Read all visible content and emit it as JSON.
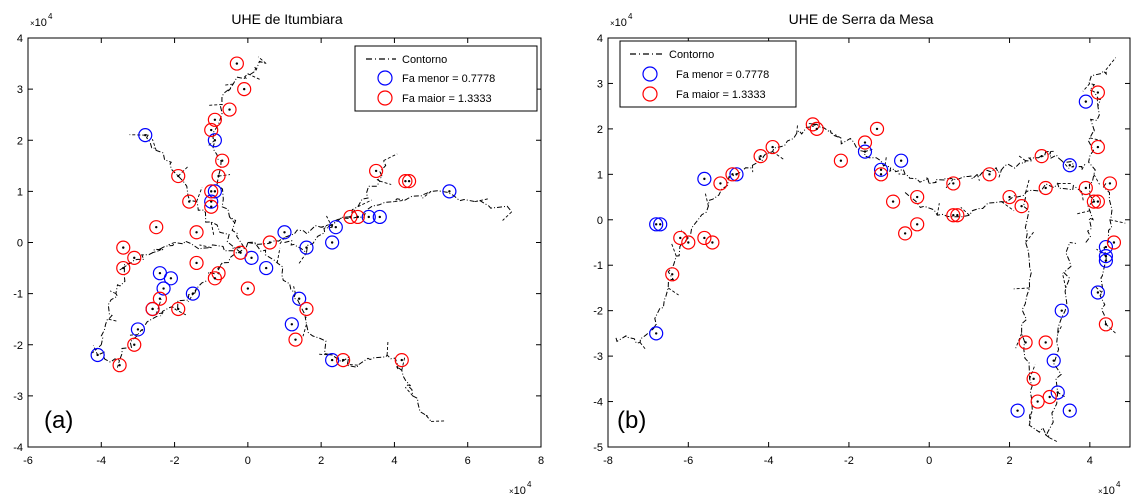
{
  "colors": {
    "blue": "#0000ff",
    "red": "#ff0000",
    "contour": "#000000"
  },
  "chart_data": [
    {
      "type": "scatter",
      "title": "UHE de Itumbiara",
      "panel_label": "(a)",
      "axis_multiplier": "10",
      "axis_exponent": "4",
      "xlim": [
        -6,
        8
      ],
      "ylim": [
        -4,
        4
      ],
      "xticks": [
        -6,
        -4,
        -2,
        0,
        2,
        4,
        6,
        8
      ],
      "yticks": [
        -4,
        -3,
        -2,
        -1,
        0,
        1,
        2,
        3,
        4
      ],
      "legend": {
        "position": "top-right",
        "entries": [
          {
            "label": "Contorno",
            "style": "dash-dot"
          },
          {
            "label": "Fa menor = 0.7778",
            "color": "blue"
          },
          {
            "label": "Fa maior = 1.3333",
            "color": "red"
          }
        ]
      },
      "contour_arms": [
        [
          [
            -0.2,
            -0.2
          ],
          [
            -1.0,
            0.4
          ],
          [
            -1.4,
            0.8
          ],
          [
            -1.9,
            1.3
          ],
          [
            -2.5,
            1.8
          ],
          [
            -2.8,
            2.1
          ]
        ],
        [
          [
            -0.1,
            -0.1
          ],
          [
            -0.5,
            0.5
          ],
          [
            -0.8,
            1.3
          ],
          [
            -0.9,
            2.0
          ],
          [
            -0.7,
            2.7
          ],
          [
            -0.4,
            3.1
          ],
          [
            0.0,
            3.3
          ],
          [
            0.5,
            3.5
          ]
        ],
        [
          [
            0.0,
            0.0
          ],
          [
            -0.7,
            -0.4
          ],
          [
            -1.4,
            -0.9
          ],
          [
            -2.0,
            -1.3
          ],
          [
            -2.5,
            -1.4
          ],
          [
            -3.0,
            -1.8
          ],
          [
            -3.5,
            -2.3
          ],
          [
            -4.1,
            -2.2
          ]
        ],
        [
          [
            -0.2,
            -0.1
          ],
          [
            -1.0,
            -0.1
          ],
          [
            -2.0,
            0.0
          ],
          [
            -2.6,
            -0.2
          ],
          [
            -3.2,
            -0.4
          ],
          [
            -3.6,
            -1.0
          ],
          [
            -3.8,
            -1.5
          ],
          [
            -4.0,
            -2.0
          ]
        ],
        [
          [
            0.0,
            0.0
          ],
          [
            1.0,
            0.1
          ],
          [
            2.0,
            0.3
          ],
          [
            3.0,
            0.5
          ],
          [
            4.0,
            0.8
          ],
          [
            5.0,
            1.0
          ],
          [
            6.2,
            0.8
          ],
          [
            7.2,
            0.6
          ]
        ],
        [
          [
            0.0,
            0.0
          ],
          [
            0.8,
            -0.4
          ],
          [
            1.3,
            -1.0
          ],
          [
            1.6,
            -1.6
          ],
          [
            2.3,
            -2.2
          ],
          [
            3.0,
            -2.4
          ],
          [
            3.8,
            -2.2
          ],
          [
            4.2,
            -2.5
          ],
          [
            4.5,
            -3.0
          ],
          [
            5.0,
            -3.5
          ]
        ],
        [
          [
            1.0,
            0.0
          ],
          [
            1.6,
            -0.2
          ],
          [
            2.3,
            0.3
          ],
          [
            3.0,
            0.7
          ],
          [
            3.6,
            1.2
          ],
          [
            3.7,
            1.6
          ]
        ]
      ],
      "series": [
        {
          "name": "Fa menor = 0.7778",
          "color": "blue",
          "points": [
            [
              -2.8,
              2.1
            ],
            [
              -0.9,
              2.0
            ],
            [
              -0.9,
              1.0
            ],
            [
              -1.0,
              0.8
            ],
            [
              5.5,
              1.0
            ],
            [
              3.6,
              0.5
            ],
            [
              3.3,
              0.5
            ],
            [
              2.4,
              0.3
            ],
            [
              2.3,
              0.0
            ],
            [
              1.0,
              0.2
            ],
            [
              1.6,
              -0.1
            ],
            [
              0.1,
              -0.3
            ],
            [
              0.5,
              -0.5
            ],
            [
              -1.5,
              -1.0
            ],
            [
              -2.1,
              -0.7
            ],
            [
              -2.4,
              -0.6
            ],
            [
              -2.3,
              -0.9
            ],
            [
              -2.6,
              -1.3
            ],
            [
              -3.0,
              -1.7
            ],
            [
              -4.1,
              -2.2
            ],
            [
              1.4,
              -1.1
            ],
            [
              1.2,
              -1.6
            ],
            [
              2.3,
              -2.3
            ]
          ]
        },
        {
          "name": "Fa maior = 1.3333",
          "color": "red",
          "points": [
            [
              -0.3,
              3.5
            ],
            [
              -0.1,
              3.0
            ],
            [
              -0.5,
              2.6
            ],
            [
              -0.9,
              2.4
            ],
            [
              -1.0,
              2.2
            ],
            [
              -0.7,
              1.6
            ],
            [
              -0.8,
              1.3
            ],
            [
              -1.0,
              1.0
            ],
            [
              -1.0,
              0.7
            ],
            [
              -1.9,
              1.3
            ],
            [
              -1.6,
              0.8
            ],
            [
              -2.5,
              0.3
            ],
            [
              -1.4,
              0.2
            ],
            [
              -3.4,
              -0.1
            ],
            [
              -3.1,
              -0.3
            ],
            [
              -3.4,
              -0.5
            ],
            [
              -0.8,
              -0.6
            ],
            [
              -0.9,
              -0.7
            ],
            [
              -1.4,
              -0.4
            ],
            [
              -1.9,
              -1.3
            ],
            [
              -2.4,
              -1.1
            ],
            [
              -2.6,
              -1.3
            ],
            [
              -3.1,
              -2.0
            ],
            [
              -3.5,
              -2.4
            ],
            [
              -0.2,
              -0.2
            ],
            [
              0.0,
              -0.9
            ],
            [
              0.6,
              0.0
            ],
            [
              2.8,
              0.5
            ],
            [
              3.0,
              0.5
            ],
            [
              3.5,
              1.4
            ],
            [
              4.3,
              1.2
            ],
            [
              4.4,
              1.2
            ],
            [
              1.6,
              -1.3
            ],
            [
              1.3,
              -1.9
            ],
            [
              2.6,
              -2.3
            ],
            [
              4.2,
              -2.3
            ]
          ]
        }
      ]
    },
    {
      "type": "scatter",
      "title": "UHE de Serra da Mesa",
      "panel_label": "(b)",
      "axis_multiplier": "10",
      "axis_exponent": "4",
      "xlim": [
        -8,
        5
      ],
      "ylim": [
        -5,
        4
      ],
      "xticks": [
        -8,
        -6,
        -4,
        -2,
        0,
        2,
        4
      ],
      "yticks": [
        -5,
        -4,
        -3,
        -2,
        -1,
        0,
        1,
        2,
        3,
        4
      ],
      "legend": {
        "position": "top-left",
        "entries": [
          {
            "label": "Contorno",
            "style": "dash-dot"
          },
          {
            "label": "Fa menor = 0.7778",
            "color": "blue"
          },
          {
            "label": "Fa maior = 1.3333",
            "color": "red"
          }
        ]
      },
      "contour_arms": [
        [
          [
            -7.8,
            -2.6
          ],
          [
            -7.2,
            -2.7
          ],
          [
            -6.8,
            -2.3
          ],
          [
            -6.5,
            -1.5
          ],
          [
            -6.3,
            -0.8
          ],
          [
            -6.0,
            -0.4
          ],
          [
            -5.5,
            0.3
          ],
          [
            -5.0,
            0.9
          ],
          [
            -4.4,
            1.2
          ],
          [
            -3.9,
            1.5
          ],
          [
            -3.3,
            1.9
          ],
          [
            -2.8,
            2.1
          ],
          [
            -2.2,
            1.8
          ],
          [
            -1.6,
            1.5
          ],
          [
            -1.1,
            1.2
          ],
          [
            -0.6,
            1.0
          ],
          [
            0.0,
            0.8
          ],
          [
            0.6,
            0.9
          ],
          [
            1.2,
            1.0
          ],
          [
            1.8,
            1.1
          ],
          [
            2.4,
            1.3
          ],
          [
            2.9,
            1.5
          ],
          [
            3.3,
            1.3
          ],
          [
            3.8,
            1.1
          ]
        ],
        [
          [
            -0.6,
            0.6
          ],
          [
            0.2,
            0.1
          ],
          [
            1.0,
            0.1
          ],
          [
            1.8,
            0.4
          ],
          [
            2.4,
            0.6
          ],
          [
            3.2,
            0.8
          ],
          [
            3.8,
            0.6
          ]
        ],
        [
          [
            2.4,
            0.5
          ],
          [
            2.4,
            -0.5
          ],
          [
            2.5,
            -1.5
          ],
          [
            2.3,
            -2.5
          ],
          [
            2.5,
            -3.5
          ],
          [
            2.5,
            -4.5
          ],
          [
            3.0,
            -4.8
          ],
          [
            3.2,
            -3.8
          ],
          [
            3.2,
            -2.5
          ],
          [
            3.4,
            -1.5
          ],
          [
            3.5,
            -0.5
          ]
        ],
        [
          [
            3.9,
            -0.5
          ],
          [
            4.0,
            0.2
          ],
          [
            4.1,
            1.0
          ],
          [
            4.0,
            1.8
          ],
          [
            4.2,
            2.5
          ],
          [
            4.0,
            3.0
          ],
          [
            4.4,
            3.3
          ]
        ],
        [
          [
            4.4,
            0.8
          ],
          [
            4.5,
            0.0
          ],
          [
            4.4,
            -0.8
          ],
          [
            4.3,
            -1.6
          ],
          [
            4.4,
            -2.3
          ]
        ]
      ],
      "series": [
        {
          "name": "Fa menor = 0.7778",
          "color": "blue",
          "points": [
            [
              -6.7,
              -0.1
            ],
            [
              -6.8,
              -0.1
            ],
            [
              -6.8,
              -2.5
            ],
            [
              -5.6,
              0.9
            ],
            [
              -4.8,
              1.0
            ],
            [
              -1.6,
              1.5
            ],
            [
              -1.2,
              1.1
            ],
            [
              -0.7,
              1.3
            ],
            [
              3.9,
              2.6
            ],
            [
              3.5,
              1.2
            ],
            [
              4.4,
              -0.6
            ],
            [
              4.4,
              -0.8
            ],
            [
              4.4,
              -0.9
            ],
            [
              4.2,
              -1.6
            ],
            [
              3.3,
              -2.0
            ],
            [
              3.1,
              -3.1
            ],
            [
              3.2,
              -3.8
            ],
            [
              3.5,
              -4.2
            ],
            [
              2.2,
              -4.2
            ]
          ]
        },
        {
          "name": "Fa maior = 1.3333",
          "color": "red",
          "points": [
            [
              -6.2,
              -0.4
            ],
            [
              -6.0,
              -0.5
            ],
            [
              -5.6,
              -0.4
            ],
            [
              -5.4,
              -0.5
            ],
            [
              -6.4,
              -1.2
            ],
            [
              -5.2,
              0.8
            ],
            [
              -4.9,
              1.0
            ],
            [
              -4.2,
              1.4
            ],
            [
              -3.9,
              1.6
            ],
            [
              -2.9,
              2.1
            ],
            [
              -2.8,
              2.0
            ],
            [
              -2.2,
              1.3
            ],
            [
              -1.6,
              1.7
            ],
            [
              -1.3,
              2.0
            ],
            [
              -1.2,
              1.0
            ],
            [
              -0.3,
              0.5
            ],
            [
              -0.9,
              0.4
            ],
            [
              -0.6,
              -0.3
            ],
            [
              -0.3,
              -0.1
            ],
            [
              0.6,
              0.8
            ],
            [
              0.6,
              0.1
            ],
            [
              0.7,
              0.1
            ],
            [
              1.5,
              1.0
            ],
            [
              2.0,
              0.5
            ],
            [
              2.3,
              0.3
            ],
            [
              2.8,
              1.4
            ],
            [
              2.9,
              0.7
            ],
            [
              4.2,
              2.8
            ],
            [
              4.2,
              1.6
            ],
            [
              4.5,
              0.8
            ],
            [
              3.9,
              0.7
            ],
            [
              4.1,
              0.4
            ],
            [
              4.2,
              0.4
            ],
            [
              4.6,
              -0.5
            ],
            [
              4.4,
              -2.3
            ],
            [
              2.4,
              -2.7
            ],
            [
              2.9,
              -2.7
            ],
            [
              2.6,
              -3.5
            ],
            [
              2.7,
              -4.0
            ],
            [
              3.0,
              -3.9
            ]
          ]
        }
      ]
    }
  ]
}
